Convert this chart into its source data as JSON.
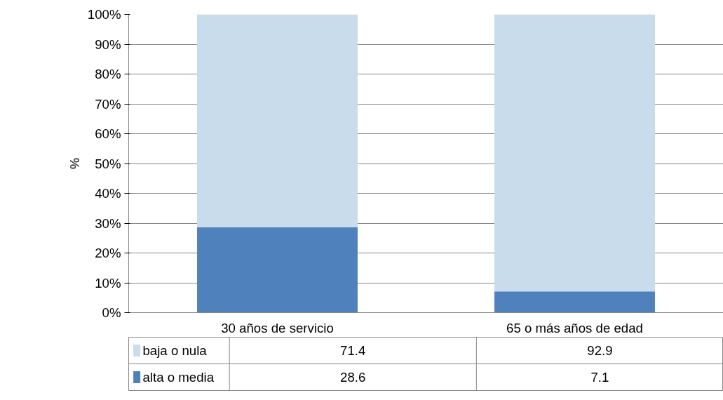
{
  "chart_data": {
    "type": "bar",
    "stacked": true,
    "categories": [
      "30 años de servicio",
      "65 o más años de edad"
    ],
    "series": [
      {
        "name": "alta o media",
        "color": "#4f81bd",
        "values": [
          28.6,
          7.1
        ]
      },
      {
        "name": "baja o nula",
        "color": "#c8dcec",
        "values": [
          71.4,
          92.9
        ]
      }
    ],
    "ylabel": "%",
    "ylim": [
      0,
      100
    ],
    "yticks": [
      {
        "value": 0,
        "label": "0%"
      },
      {
        "value": 10,
        "label": "10%"
      },
      {
        "value": 20,
        "label": "20%"
      },
      {
        "value": 30,
        "label": "30%"
      },
      {
        "value": 40,
        "label": "40%"
      },
      {
        "value": 50,
        "label": "50%"
      },
      {
        "value": 60,
        "label": "60%"
      },
      {
        "value": 70,
        "label": "70%"
      },
      {
        "value": 80,
        "label": "80%"
      },
      {
        "value": 90,
        "label": "90%"
      },
      {
        "value": 100,
        "label": "100%"
      }
    ],
    "grid": "y",
    "legend": "bottom",
    "data_labels": true
  }
}
